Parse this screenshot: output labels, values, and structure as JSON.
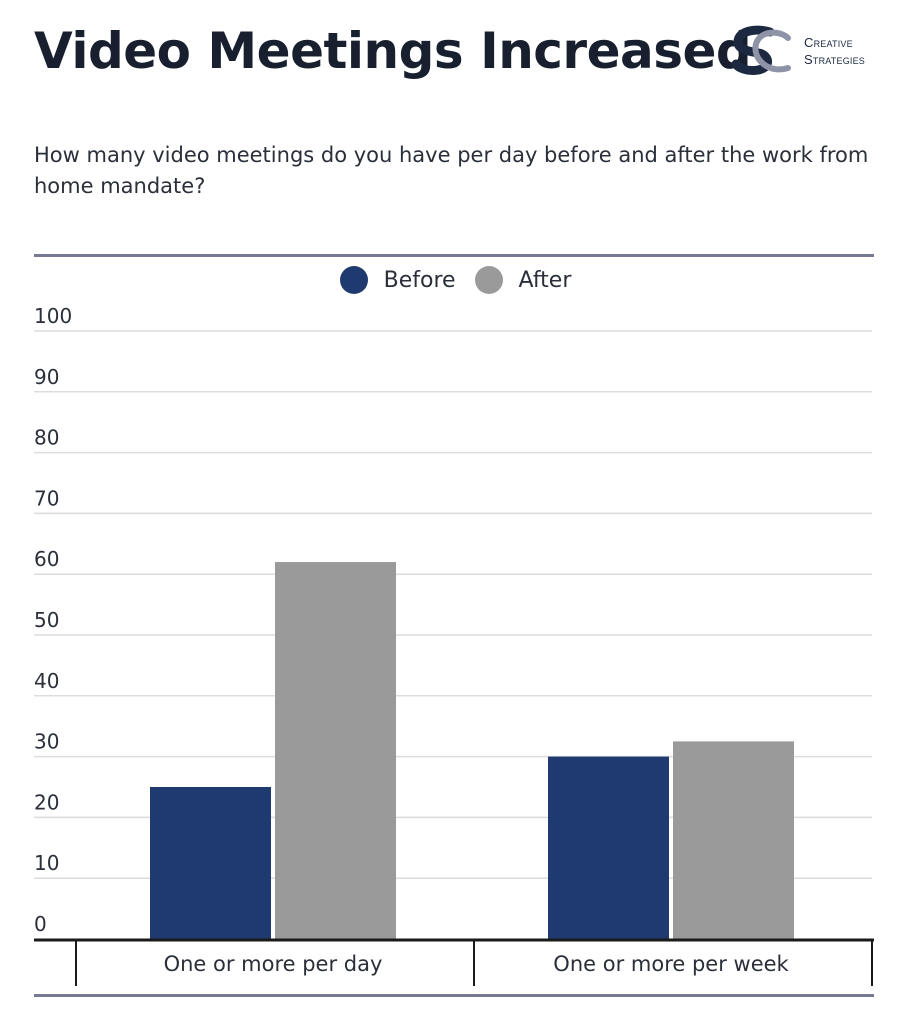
{
  "header": {
    "title": "Video Meetings Increased",
    "subtitle": "How many video meetings do you have per day before and after the work from home mandate?",
    "logo_line1": "Creative",
    "logo_line2": "Strategies",
    "logo_icon": "cs-monogram-icon"
  },
  "colors": {
    "before": "#1e3a6e",
    "after": "#9a9a9a",
    "rule": "#767a93",
    "grid": "#dcdcdc",
    "axis": "#1a1a1a"
  },
  "chart_data": {
    "type": "bar",
    "categories": [
      "One or more per day",
      "One or more per week"
    ],
    "series": [
      {
        "name": "Before",
        "values": [
          25,
          30
        ]
      },
      {
        "name": "After",
        "values": [
          62,
          32.5
        ]
      }
    ],
    "ylim": [
      0,
      100
    ],
    "yticks": [
      0,
      10,
      20,
      30,
      40,
      50,
      60,
      70,
      80,
      90,
      100
    ],
    "grid": true,
    "legend": "top-center",
    "xlabel": "",
    "ylabel": ""
  }
}
